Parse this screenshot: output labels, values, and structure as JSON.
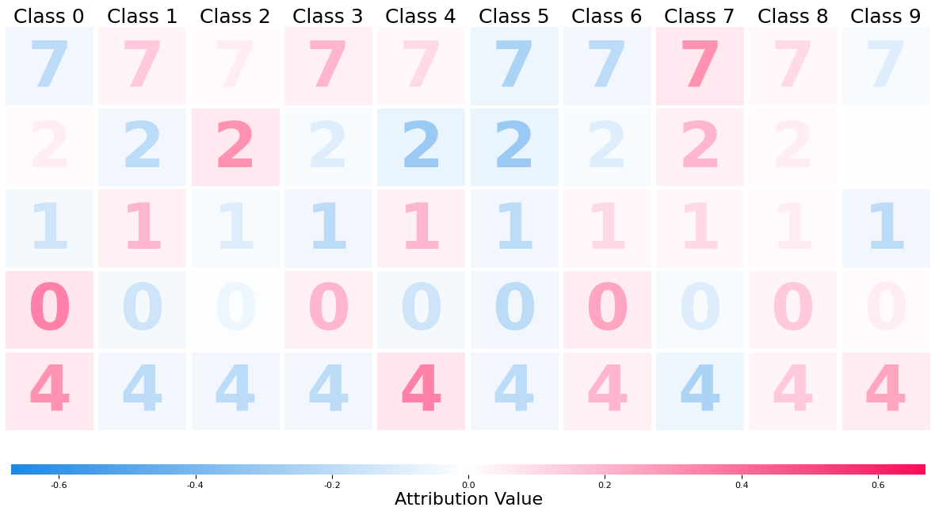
{
  "chart_data": {
    "type": "image_grid",
    "columns": [
      "Class 0",
      "Class 1",
      "Class 2",
      "Class 3",
      "Class 4",
      "Class 5",
      "Class 6",
      "Class 7",
      "Class 8",
      "Class 9"
    ],
    "rows": [
      "7",
      "2",
      "1",
      "0",
      "4"
    ],
    "values": [
      [
        -0.2,
        0.15,
        0.05,
        0.2,
        0.1,
        -0.25,
        -0.2,
        0.3,
        0.1,
        -0.1
      ],
      [
        0.05,
        -0.2,
        0.3,
        -0.1,
        -0.3,
        -0.3,
        -0.1,
        0.2,
        0.05,
        0.0
      ],
      [
        -0.15,
        0.2,
        -0.1,
        -0.2,
        0.2,
        -0.2,
        0.1,
        0.1,
        0.05,
        -0.2
      ],
      [
        0.35,
        -0.15,
        -0.05,
        0.2,
        -0.15,
        -0.2,
        0.25,
        -0.1,
        0.15,
        0.05
      ],
      [
        0.3,
        -0.2,
        -0.2,
        -0.2,
        0.35,
        -0.2,
        0.2,
        -0.25,
        0.15,
        0.25
      ]
    ],
    "colorbar": {
      "label": "Attribution Value",
      "range": [
        -0.67,
        0.67
      ],
      "ticks": [
        -0.6,
        -0.4,
        -0.2,
        0.0,
        0.2,
        0.4,
        0.6
      ],
      "colors": [
        "#1e88e5",
        "#ffffff",
        "#ff0d57"
      ]
    }
  }
}
